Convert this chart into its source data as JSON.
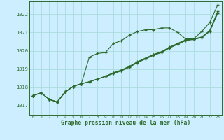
{
  "xlabel": "Graphe pression niveau de la mer (hPa)",
  "background_color": "#cceeff",
  "grid_color": "#aadddd",
  "line_color": "#2d6a2d",
  "xlim": [
    -0.5,
    23.5
  ],
  "ylim": [
    1016.5,
    1022.7
  ],
  "yticks": [
    1017,
    1018,
    1019,
    1020,
    1021,
    1022
  ],
  "xticks": [
    0,
    1,
    2,
    3,
    4,
    5,
    6,
    7,
    8,
    9,
    10,
    11,
    12,
    13,
    14,
    15,
    16,
    17,
    18,
    19,
    20,
    21,
    22,
    23
  ],
  "line1": [
    1017.55,
    1017.7,
    1017.35,
    1017.2,
    1017.75,
    1018.05,
    1018.25,
    1019.65,
    1019.85,
    1019.9,
    1020.4,
    1020.55,
    1020.85,
    1021.05,
    1021.15,
    1021.15,
    1021.25,
    1021.25,
    1021.0,
    1020.65,
    1020.65,
    1021.05,
    1021.55,
    1022.5
  ],
  "line2": [
    1017.55,
    1017.7,
    1017.35,
    1017.2,
    1017.8,
    1018.1,
    1018.3,
    1018.35,
    1018.4,
    1018.55,
    1018.75,
    1018.9,
    1019.1,
    1019.35,
    1019.55,
    1019.75,
    1019.9,
    1020.15,
    1020.35,
    1020.55,
    1020.65,
    1020.75,
    1021.1,
    1022.15
  ],
  "line3": [
    1017.55,
    1017.7,
    1017.35,
    1017.2,
    1017.75,
    1018.05,
    1018.25,
    1018.3,
    1018.45,
    1018.6,
    1018.8,
    1018.95,
    1019.15,
    1019.4,
    1019.6,
    1019.8,
    1019.95,
    1020.2,
    1020.4,
    1020.6,
    1020.65,
    1020.75,
    1021.15,
    1022.2
  ],
  "line4": [
    1017.55,
    1017.7,
    1017.35,
    1017.2,
    1017.75,
    1018.05,
    1018.25,
    1018.35,
    1018.45,
    1018.6,
    1018.75,
    1018.9,
    1019.1,
    1019.35,
    1019.55,
    1019.75,
    1019.9,
    1020.2,
    1020.35,
    1020.6,
    1020.65,
    1020.75,
    1021.1,
    1022.15
  ]
}
